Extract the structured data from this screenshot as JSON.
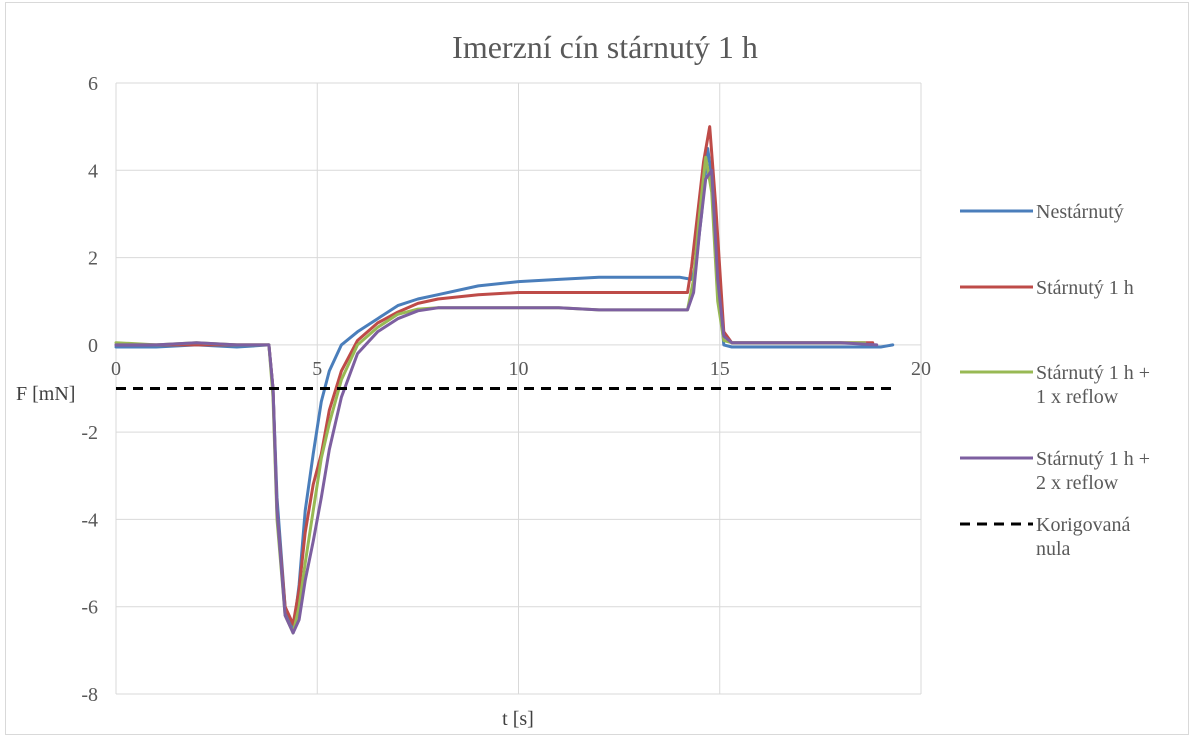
{
  "chart_data": {
    "type": "line",
    "title": "Imerzní cín stárnutý 1 h",
    "xlabel": "t [s]",
    "ylabel": "F [mN]",
    "xlim": [
      0,
      20
    ],
    "ylim": [
      -8,
      6
    ],
    "xticks": [
      "0",
      "5",
      "10",
      "15",
      "20"
    ],
    "yticks": [
      "-8",
      "-6",
      "-4",
      "-2",
      "0",
      "2",
      "4",
      "6"
    ],
    "grid": true,
    "legend_position": "right",
    "series": [
      {
        "name": "Nestárnutý",
        "color": "#4a7ebb",
        "dash": "solid",
        "x": [
          0,
          1,
          2,
          3,
          3.8,
          3.9,
          4.0,
          4.2,
          4.4,
          4.55,
          4.7,
          4.9,
          5.1,
          5.3,
          5.6,
          6.0,
          6.5,
          7.0,
          7.5,
          8,
          9,
          10,
          11,
          12,
          13,
          14,
          14.3,
          14.4,
          14.55,
          14.7,
          14.85,
          15.0,
          15.1,
          15.3,
          16,
          17,
          18,
          19,
          19.3
        ],
        "y": [
          -0.05,
          -0.05,
          0.0,
          -0.05,
          0.0,
          -1.0,
          -3.5,
          -6.0,
          -6.6,
          -5.5,
          -3.8,
          -2.5,
          -1.3,
          -0.6,
          0.0,
          0.3,
          0.6,
          0.9,
          1.05,
          1.15,
          1.35,
          1.45,
          1.5,
          1.55,
          1.55,
          1.55,
          1.5,
          1.8,
          3.0,
          4.5,
          3.5,
          1.0,
          0.0,
          -0.05,
          -0.05,
          -0.05,
          -0.05,
          -0.05,
          0.0
        ]
      },
      {
        "name": "Stárnutý 1 h",
        "color": "#be4b48",
        "dash": "solid",
        "x": [
          0,
          1,
          2,
          3,
          3.8,
          3.9,
          4.0,
          4.2,
          4.4,
          4.55,
          4.7,
          4.9,
          5.1,
          5.3,
          5.6,
          6.0,
          6.5,
          7.0,
          7.5,
          8,
          9,
          10,
          11,
          12,
          13,
          14,
          14.2,
          14.3,
          14.45,
          14.6,
          14.75,
          14.9,
          15.1,
          15.3,
          16,
          17,
          18,
          18.8
        ],
        "y": [
          0.0,
          0.0,
          0.0,
          0.0,
          0.0,
          -1.0,
          -3.8,
          -6.0,
          -6.4,
          -5.6,
          -4.3,
          -3.2,
          -2.5,
          -1.5,
          -0.6,
          0.1,
          0.5,
          0.75,
          0.95,
          1.05,
          1.15,
          1.2,
          1.2,
          1.2,
          1.2,
          1.2,
          1.2,
          1.8,
          3.0,
          4.2,
          5.0,
          3.2,
          0.3,
          0.05,
          0.05,
          0.05,
          0.05,
          0.05
        ]
      },
      {
        "name": "Stárnutý 1 h + 1 x reflow",
        "color": "#98b954",
        "dash": "solid",
        "x": [
          0,
          1,
          2,
          3,
          3.8,
          3.9,
          4.0,
          4.2,
          4.4,
          4.55,
          4.7,
          4.9,
          5.1,
          5.3,
          5.6,
          6.0,
          6.5,
          7.0,
          7.5,
          8,
          9,
          10,
          11,
          12,
          13,
          14,
          14.2,
          14.35,
          14.5,
          14.65,
          14.8,
          14.95,
          15.1,
          15.3,
          16,
          17,
          18,
          18.6
        ],
        "y": [
          0.05,
          0.0,
          0.05,
          0.0,
          0.0,
          -1.2,
          -4.0,
          -6.2,
          -6.6,
          -6.0,
          -5.0,
          -3.8,
          -2.6,
          -1.8,
          -0.8,
          0.0,
          0.4,
          0.7,
          0.82,
          0.85,
          0.85,
          0.85,
          0.85,
          0.8,
          0.8,
          0.8,
          0.8,
          1.5,
          3.0,
          4.3,
          3.5,
          1.0,
          0.1,
          0.05,
          0.05,
          0.05,
          0.05,
          0.05
        ]
      },
      {
        "name": "Stárnutý 1 h + 2 x reflow",
        "color": "#7d5fa0",
        "dash": "solid",
        "x": [
          0,
          1,
          2,
          3,
          3.8,
          3.9,
          4.0,
          4.2,
          4.4,
          4.55,
          4.7,
          4.9,
          5.1,
          5.3,
          5.6,
          6.0,
          6.5,
          7.0,
          7.5,
          8,
          9,
          10,
          11,
          12,
          13,
          14,
          14.2,
          14.35,
          14.5,
          14.65,
          14.8,
          14.95,
          15.1,
          15.3,
          16,
          17,
          18,
          18.9
        ],
        "y": [
          0.0,
          0.0,
          0.05,
          0.0,
          0.0,
          -1.0,
          -3.8,
          -6.2,
          -6.6,
          -6.3,
          -5.4,
          -4.5,
          -3.5,
          -2.4,
          -1.2,
          -0.2,
          0.3,
          0.6,
          0.78,
          0.85,
          0.85,
          0.85,
          0.85,
          0.8,
          0.8,
          0.8,
          0.8,
          1.2,
          2.6,
          3.8,
          4.0,
          1.5,
          0.2,
          0.05,
          0.05,
          0.05,
          0.05,
          0.0
        ]
      },
      {
        "name": "Korigovaná nula",
        "color": "#000000",
        "dash": "dashed",
        "x": [
          0,
          19.3
        ],
        "y": [
          -1.0,
          -1.0
        ]
      }
    ],
    "legend_lines": [
      [
        "Nestárnutý"
      ],
      [
        "Stárnutý 1 h"
      ],
      [
        "Stárnutý 1 h +",
        "1 x reflow"
      ],
      [
        "Stárnutý 1 h +",
        "2 x reflow"
      ],
      [
        "Korigovaná",
        "nula"
      ]
    ]
  }
}
